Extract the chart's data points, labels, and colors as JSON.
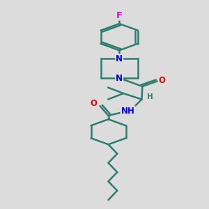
{
  "bg_color": "#dcdcdc",
  "bond_color": "#2d7d6e",
  "bond_width": 1.8,
  "atom_colors": {
    "N": "#0000ee",
    "O": "#ee0000",
    "F": "#ee00ee",
    "C": "#2d7d6e"
  },
  "font_size": 8.5,
  "fig_size": [
    3.0,
    3.0
  ],
  "dpi": 100
}
